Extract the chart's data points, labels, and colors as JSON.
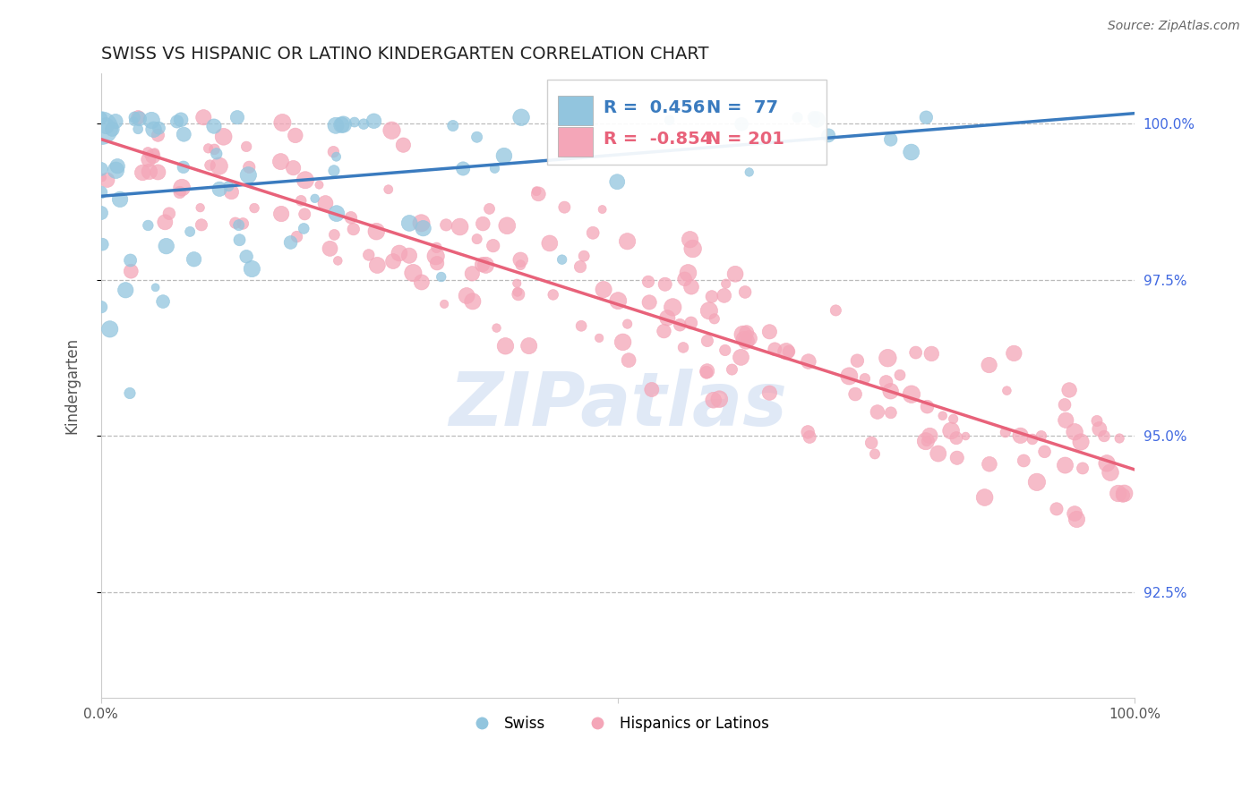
{
  "title": "SWISS VS HISPANIC OR LATINO KINDERGARTEN CORRELATION CHART",
  "source": "Source: ZipAtlas.com",
  "ylabel": "Kindergarten",
  "y_ticks": [
    0.925,
    0.95,
    0.975,
    1.0
  ],
  "y_tick_labels": [
    "92.5%",
    "95.0%",
    "97.5%",
    "100.0%"
  ],
  "x_range": [
    0.0,
    1.0
  ],
  "y_range": [
    0.908,
    1.008
  ],
  "blue_R": 0.456,
  "blue_N": 77,
  "pink_R": -0.854,
  "pink_N": 201,
  "blue_color": "#92c5de",
  "pink_color": "#f4a6b8",
  "blue_line_color": "#3a7bbf",
  "pink_line_color": "#e8627a",
  "watermark_text": "ZIPatlas",
  "legend_label_blue": "Swiss",
  "legend_label_pink": "Hispanics or Latinos",
  "background_color": "#ffffff",
  "grid_color": "#bbbbbb",
  "right_axis_color": "#4169E1",
  "legend_text_color": "#222222"
}
